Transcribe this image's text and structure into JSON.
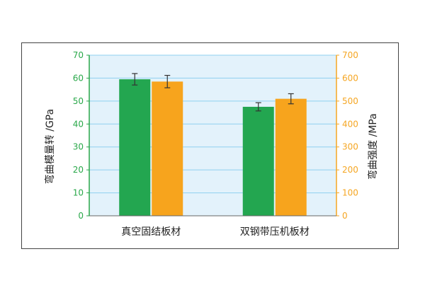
{
  "chart_data": {
    "type": "bar",
    "categories": [
      "真空固结板材",
      "双钢带压机板材"
    ],
    "series": [
      {
        "values": [
          59.5,
          47.5
        ],
        "errors": [
          2.5,
          1.8
        ],
        "color": "#23a650",
        "axis": "left"
      },
      {
        "values": [
          585,
          510
        ],
        "errors": [
          27,
          22
        ],
        "color": "#f7a41d",
        "axis": "right"
      }
    ],
    "ylabel_left": "弯曲模量转 /GPa",
    "ylabel_right": "弯曲强度 /MPa",
    "ylim_left": [
      0,
      70
    ],
    "ylim_right": [
      0,
      700
    ],
    "yticks_left": [
      "0",
      "10",
      "20",
      "30",
      "40",
      "50",
      "60",
      "70"
    ],
    "yticks_right": [
      "0",
      "100",
      "200",
      "300",
      "400",
      "500",
      "600",
      "700"
    ],
    "grid": true,
    "plot_background": "#e3f2fb",
    "grid_color": "#8fd0ef",
    "left_axis_color": "#2aa84a",
    "right_axis_color": "#f5a623"
  }
}
